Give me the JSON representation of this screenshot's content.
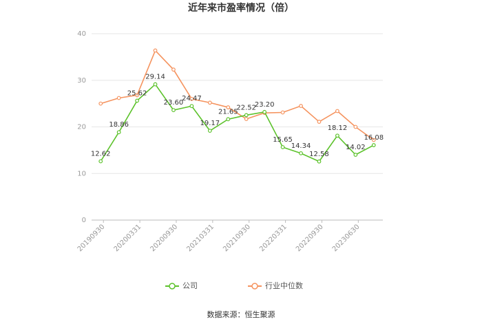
{
  "chart_data": {
    "type": "line",
    "title": "近年来市盈率情况（倍）",
    "categories": [
      "20190930",
      null,
      "20200331",
      null,
      "20200930",
      null,
      "20210331",
      null,
      "20210930",
      null,
      "20220331",
      null,
      "20220930",
      null,
      "20230630",
      null
    ],
    "series": [
      {
        "name": "公司",
        "color": "#5cc22b",
        "values": [
          12.62,
          18.86,
          25.62,
          29.14,
          23.6,
          24.47,
          19.17,
          21.65,
          22.52,
          23.2,
          15.65,
          14.34,
          12.58,
          18.12,
          14.02,
          16.08
        ],
        "value_labels": [
          "12.62",
          "18.86",
          "25.62",
          "29.14",
          "23.60",
          "24.47",
          "19.17",
          "21.65",
          "22.52",
          "23.20",
          "15.65",
          "14.34",
          "12.58",
          "18.12",
          "14.02",
          "16.08"
        ]
      },
      {
        "name": "行业中位数",
        "color": "#f5935e",
        "values": [
          25.0,
          26.2,
          26.8,
          36.4,
          32.3,
          26.0,
          25.2,
          24.2,
          21.7,
          23.0,
          23.1,
          24.5,
          21.1,
          23.4,
          20.0,
          17.2
        ]
      }
    ],
    "ylim": [
      0,
      40
    ],
    "yticks": [
      0,
      10,
      20,
      30,
      40
    ],
    "grid": true,
    "legend": "bottom",
    "source": "数据来源：恒生聚源"
  }
}
